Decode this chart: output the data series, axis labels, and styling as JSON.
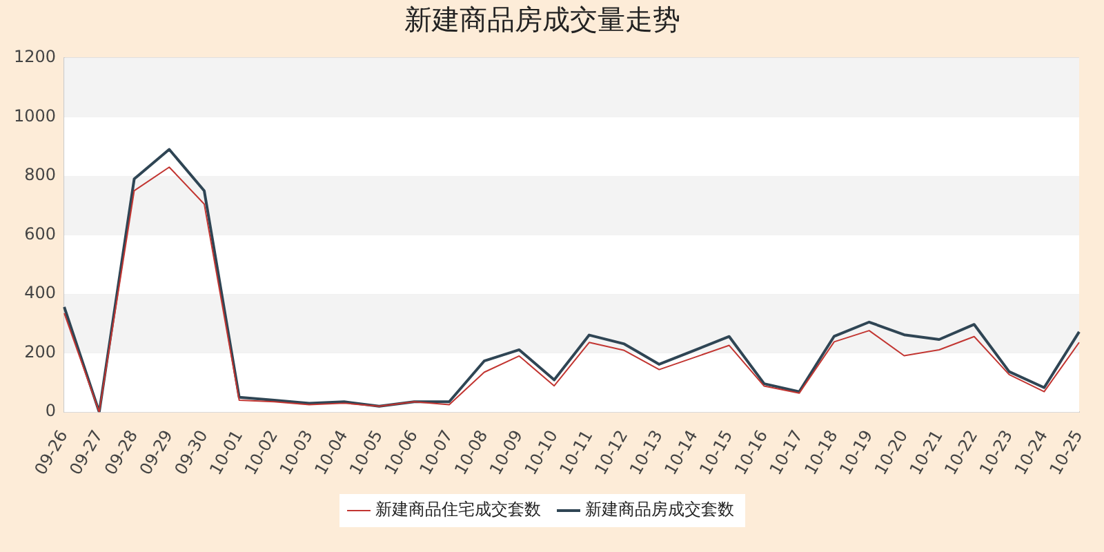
{
  "chart_data": {
    "type": "line",
    "title": "新建商品房成交量走势",
    "categories": [
      "09-26",
      "09-27",
      "09-28",
      "09-29",
      "09-30",
      "10-01",
      "10-02",
      "10-03",
      "10-04",
      "10-05",
      "10-06",
      "10-07",
      "10-08",
      "10-09",
      "10-10",
      "10-11",
      "10-12",
      "10-13",
      "10-14",
      "10-15",
      "10-16",
      "10-17",
      "10-18",
      "10-19",
      "10-20",
      "10-21",
      "10-22",
      "10-23",
      "10-24",
      "10-25"
    ],
    "series": [
      {
        "name": "新建商品住宅成交套数",
        "color": "#c23531",
        "values": [
          335,
          0,
          750,
          830,
          705,
          40,
          35,
          25,
          30,
          20,
          35,
          25,
          135,
          190,
          89,
          236,
          209,
          144,
          185,
          226,
          88,
          64,
          238,
          276,
          191,
          211,
          256,
          127,
          69,
          236
        ]
      },
      {
        "name": "新建商品房成交套数",
        "color": "#2f4554",
        "values": [
          356,
          0,
          790,
          890,
          750,
          50,
          40,
          30,
          35,
          20,
          35,
          35,
          173,
          211,
          109,
          261,
          231,
          162,
          209,
          256,
          96,
          69,
          257,
          305,
          262,
          246,
          297,
          137,
          83,
          272
        ]
      }
    ],
    "ylim": [
      0,
      1200
    ],
    "yticks": [
      0,
      200,
      400,
      600,
      800,
      1000,
      1200
    ],
    "grid": "y",
    "legend": "bottom",
    "marker": "none",
    "line_style": "solid"
  }
}
